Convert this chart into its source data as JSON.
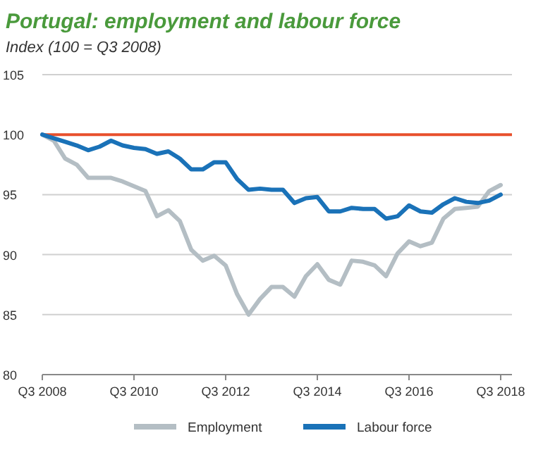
{
  "chart_data": {
    "type": "line",
    "title": "Portugal: employment and labour force",
    "subtitle": "Index (100 = Q3 2008)",
    "categories": [
      "Q3 2008",
      null,
      null,
      null,
      null,
      null,
      null,
      null,
      "Q3 2010",
      null,
      null,
      null,
      null,
      null,
      null,
      null,
      "Q3 2012",
      null,
      null,
      null,
      null,
      null,
      null,
      null,
      "Q3 2014",
      null,
      null,
      null,
      null,
      null,
      null,
      null,
      "Q3 2016",
      null,
      null,
      null,
      null,
      null,
      null,
      null,
      "Q3 2018"
    ],
    "series": [
      {
        "name": "Employment",
        "color": "#b4bec4",
        "values": [
          100,
          99.5,
          98.0,
          97.5,
          96.4,
          96.4,
          96.4,
          96.1,
          95.7,
          95.3,
          93.2,
          93.7,
          92.8,
          90.4,
          89.5,
          89.9,
          89.1,
          86.7,
          85.0,
          86.3,
          87.3,
          87.3,
          86.5,
          88.2,
          89.2,
          87.9,
          87.5,
          89.5,
          89.4,
          89.1,
          88.2,
          90.1,
          91.1,
          90.7,
          91.0,
          93.0,
          93.8,
          93.9,
          94.0,
          95.3,
          95.8
        ]
      },
      {
        "name": "Labour force",
        "color": "#1a72b8",
        "values": [
          100,
          99.7,
          99.4,
          99.1,
          98.7,
          99.0,
          99.5,
          99.1,
          98.9,
          98.8,
          98.4,
          98.6,
          98.0,
          97.1,
          97.1,
          97.7,
          97.7,
          96.3,
          95.4,
          95.5,
          95.4,
          95.4,
          94.3,
          94.7,
          94.8,
          93.6,
          93.6,
          93.9,
          93.8,
          93.8,
          93.0,
          93.2,
          94.1,
          93.6,
          93.5,
          94.2,
          94.7,
          94.4,
          94.3,
          94.5,
          95.0
        ]
      }
    ],
    "ylim": [
      80,
      105
    ],
    "yticks": [
      80,
      85,
      90,
      95,
      100,
      105
    ],
    "grid": "y",
    "legend": "bottom",
    "line_style": "solid",
    "marker": "none",
    "ref_lines": [
      {
        "axis": "y",
        "value": 100,
        "color": "#e8502d"
      }
    ]
  }
}
